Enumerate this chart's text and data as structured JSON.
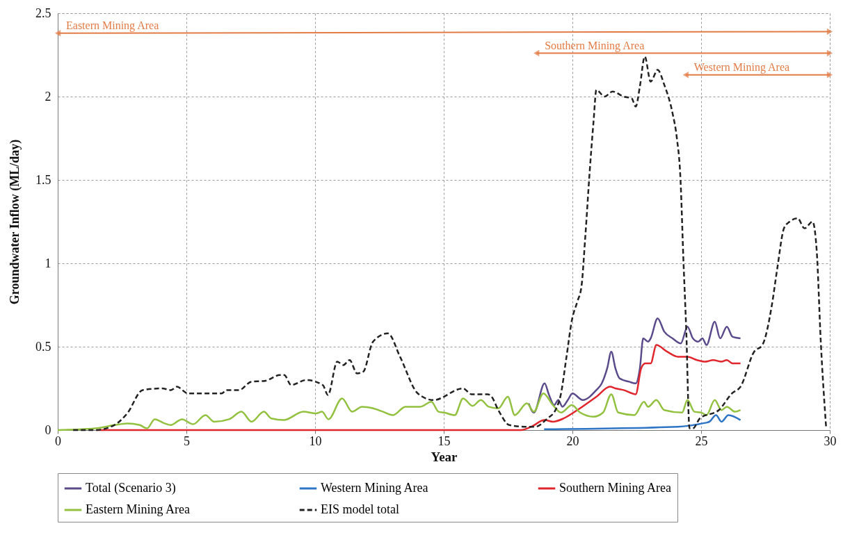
{
  "chart_data": {
    "type": "line",
    "xlabel": "Year",
    "ylabel": "Groundwater Inflow (ML/day)",
    "xlim": [
      0,
      30
    ],
    "xticks": [
      0,
      5,
      10,
      15,
      20,
      25,
      30
    ],
    "ylim": [
      0,
      2.5
    ],
    "yticks": [
      0,
      0.5,
      1,
      1.5,
      2,
      2.5
    ],
    "grid": true,
    "legend": "bottom",
    "series": [
      {
        "name": "Total (Scenario 3)",
        "color": "#5b4a8b",
        "line_style": "solid",
        "x": [
          18.3,
          18.5,
          18.92,
          19.08,
          19.29,
          19.45,
          19.61,
          19.82,
          20,
          20.4,
          20.93,
          21.14,
          21.35,
          21.51,
          21.67,
          21.83,
          22.2,
          22.46,
          22.62,
          22.75,
          22.94,
          23.04,
          23.31,
          23.57,
          23.89,
          24.21,
          24.47,
          24.68,
          24.89,
          25.05,
          25.21,
          25.53,
          25.74,
          26.0,
          26.22,
          26.53
        ],
        "values": [
          0.16,
          0.105,
          0.28,
          0.215,
          0.15,
          0.18,
          0.14,
          0.18,
          0.22,
          0.18,
          0.24,
          0.28,
          0.37,
          0.47,
          0.37,
          0.31,
          0.29,
          0.28,
          0.37,
          0.55,
          0.53,
          0.55,
          0.67,
          0.59,
          0.55,
          0.52,
          0.62,
          0.55,
          0.53,
          0.55,
          0.51,
          0.65,
          0.55,
          0.62,
          0.56,
          0.55
        ]
      },
      {
        "name": "Western Mining Area",
        "color": "#2e75c6",
        "line_style": "solid",
        "x": [
          18.9,
          24.1,
          25.05,
          25.32,
          25.58,
          25.79,
          26.06,
          26.53
        ],
        "values": [
          0.005,
          0.02,
          0.04,
          0.05,
          0.09,
          0.05,
          0.09,
          0.06
        ]
      },
      {
        "name": "Southern Mining Area",
        "color": "#e0262c",
        "line_style": "solid",
        "x": [
          1.5,
          18,
          18.4,
          18.92,
          19.24,
          19.66,
          20.19,
          20.93,
          21.46,
          21.67,
          21.99,
          22.46,
          22.67,
          22.83,
          23.04,
          23.26,
          23.68,
          24.1,
          24.47,
          24.84,
          25.16,
          25.47,
          25.79,
          26.0,
          26.22,
          26.53
        ],
        "values": [
          0,
          0,
          0.02,
          0.06,
          0.05,
          0.07,
          0.12,
          0.2,
          0.26,
          0.25,
          0.24,
          0.215,
          0.37,
          0.4,
          0.4,
          0.51,
          0.47,
          0.44,
          0.44,
          0.42,
          0.41,
          0.42,
          0.41,
          0.42,
          0.4,
          0.4
        ]
      },
      {
        "name": "Eastern Mining Area",
        "color": "#92c13f",
        "line_style": "solid",
        "x": [
          0,
          1.46,
          2.2,
          2.7,
          3.19,
          3.47,
          3.77,
          4.15,
          4.39,
          4.83,
          5.26,
          5.74,
          6.08,
          6.66,
          7.14,
          7.53,
          8.01,
          8.3,
          8.78,
          9.55,
          10.03,
          10.27,
          10.52,
          11.05,
          11.44,
          11.82,
          12.26,
          12.64,
          13.03,
          13.51,
          14.09,
          14.52,
          14.8,
          15.01,
          15.43,
          15.75,
          16.12,
          16.44,
          16.75,
          17.12,
          17.49,
          17.76,
          18.23,
          18.5,
          18.87,
          19.24,
          19.56,
          19.98,
          20.3,
          20.82,
          21.19,
          21.51,
          21.78,
          22.41,
          22.78,
          22.94,
          23.26,
          23.57,
          24.26,
          24.47,
          24.74,
          25.0,
          25.21,
          25.53,
          25.79,
          26.0,
          26.32,
          26.53
        ],
        "values": [
          0,
          0.01,
          0.03,
          0.04,
          0.03,
          0.01,
          0.065,
          0.04,
          0.03,
          0.065,
          0.035,
          0.09,
          0.05,
          0.065,
          0.11,
          0.05,
          0.11,
          0.07,
          0.06,
          0.11,
          0.1,
          0.11,
          0.065,
          0.19,
          0.11,
          0.14,
          0.13,
          0.11,
          0.09,
          0.14,
          0.14,
          0.17,
          0.11,
          0.105,
          0.09,
          0.19,
          0.145,
          0.18,
          0.14,
          0.13,
          0.2,
          0.09,
          0.16,
          0.11,
          0.22,
          0.15,
          0.105,
          0.15,
          0.105,
          0.08,
          0.105,
          0.215,
          0.105,
          0.09,
          0.17,
          0.14,
          0.18,
          0.12,
          0.105,
          0.18,
          0.11,
          0.105,
          0.09,
          0.18,
          0.12,
          0.14,
          0.11,
          0.12
        ]
      },
      {
        "name": "EIS model total",
        "color": "#222222",
        "line_style": "dashed",
        "x": [
          0.6,
          1.46,
          2.2,
          2.7,
          3.3,
          4.05,
          4.4,
          4.63,
          5.06,
          6.37,
          6.56,
          7.05,
          7.52,
          8.05,
          8.64,
          8.8,
          9.07,
          9.65,
          10.3,
          10.5,
          10.86,
          11.1,
          11.34,
          11.63,
          11.87,
          12.25,
          12.83,
          13.3,
          13.99,
          14.6,
          15.75,
          16.07,
          16.7,
          16.86,
          17.12,
          17.55,
          18.2,
          18.55,
          19.03,
          19.34,
          19.55,
          19.77,
          19.98,
          20.19,
          20.35,
          20.5,
          20.67,
          20.82,
          20.93,
          21.25,
          21.56,
          21.99,
          22.3,
          22.46,
          22.62,
          22.81,
          23.04,
          23.31,
          23.57,
          23.89,
          24.05,
          24.2,
          24.31,
          24.42,
          24.55,
          24.68,
          24.95,
          25.69,
          26.2,
          26.53,
          27.06,
          27.38,
          27.75,
          27.96,
          28.22,
          28.44,
          28.75,
          29.02,
          29.33,
          29.49,
          29.65,
          29.86
        ],
        "values": [
          0,
          0,
          0.03,
          0.1,
          0.24,
          0.25,
          0.24,
          0.26,
          0.22,
          0.22,
          0.24,
          0.24,
          0.29,
          0.295,
          0.33,
          0.33,
          0.27,
          0.3,
          0.27,
          0.21,
          0.41,
          0.39,
          0.42,
          0.34,
          0.35,
          0.53,
          0.58,
          0.44,
          0.22,
          0.18,
          0.25,
          0.215,
          0.215,
          0.2,
          0.12,
          0.03,
          0.02,
          0.02,
          0.07,
          0.12,
          0.215,
          0.44,
          0.66,
          0.77,
          0.86,
          1.16,
          1.55,
          1.85,
          2.04,
          2.0,
          2.03,
          2.0,
          1.99,
          1.94,
          2.06,
          2.24,
          2.09,
          2.16,
          2.07,
          1.9,
          1.76,
          1.5,
          1.03,
          0.61,
          0.01,
          0.01,
          0.07,
          0.12,
          0.22,
          0.26,
          0.47,
          0.51,
          0.75,
          0.97,
          1.21,
          1.25,
          1.27,
          1.21,
          1.25,
          1.08,
          0.53,
          0.01
        ]
      },
      {
        "color": "#e37b45",
        "line_style": "solid",
        "marker": "triangle",
        "x": [
          0,
          30
        ],
        "values": [
          2.38,
          2.39
        ]
      },
      {
        "color": "#e37b45",
        "line_style": "solid",
        "marker": "triangle",
        "x": [
          18.6,
          30
        ],
        "values": [
          2.26,
          2.26
        ]
      },
      {
        "color": "#e37b45",
        "line_style": "solid",
        "marker": "triangle",
        "x": [
          24.4,
          30
        ],
        "values": [
          2.13,
          2.13
        ]
      }
    ],
    "annotations": [
      {
        "text": "Eastern  Mining Area",
        "x": 0,
        "y": 2.38
      },
      {
        "text": "Southern  Mining Area",
        "x": 18.6,
        "y": 2.26
      },
      {
        "text": "Western  Mining Area",
        "x": 24.4,
        "y": 2.13
      }
    ]
  }
}
